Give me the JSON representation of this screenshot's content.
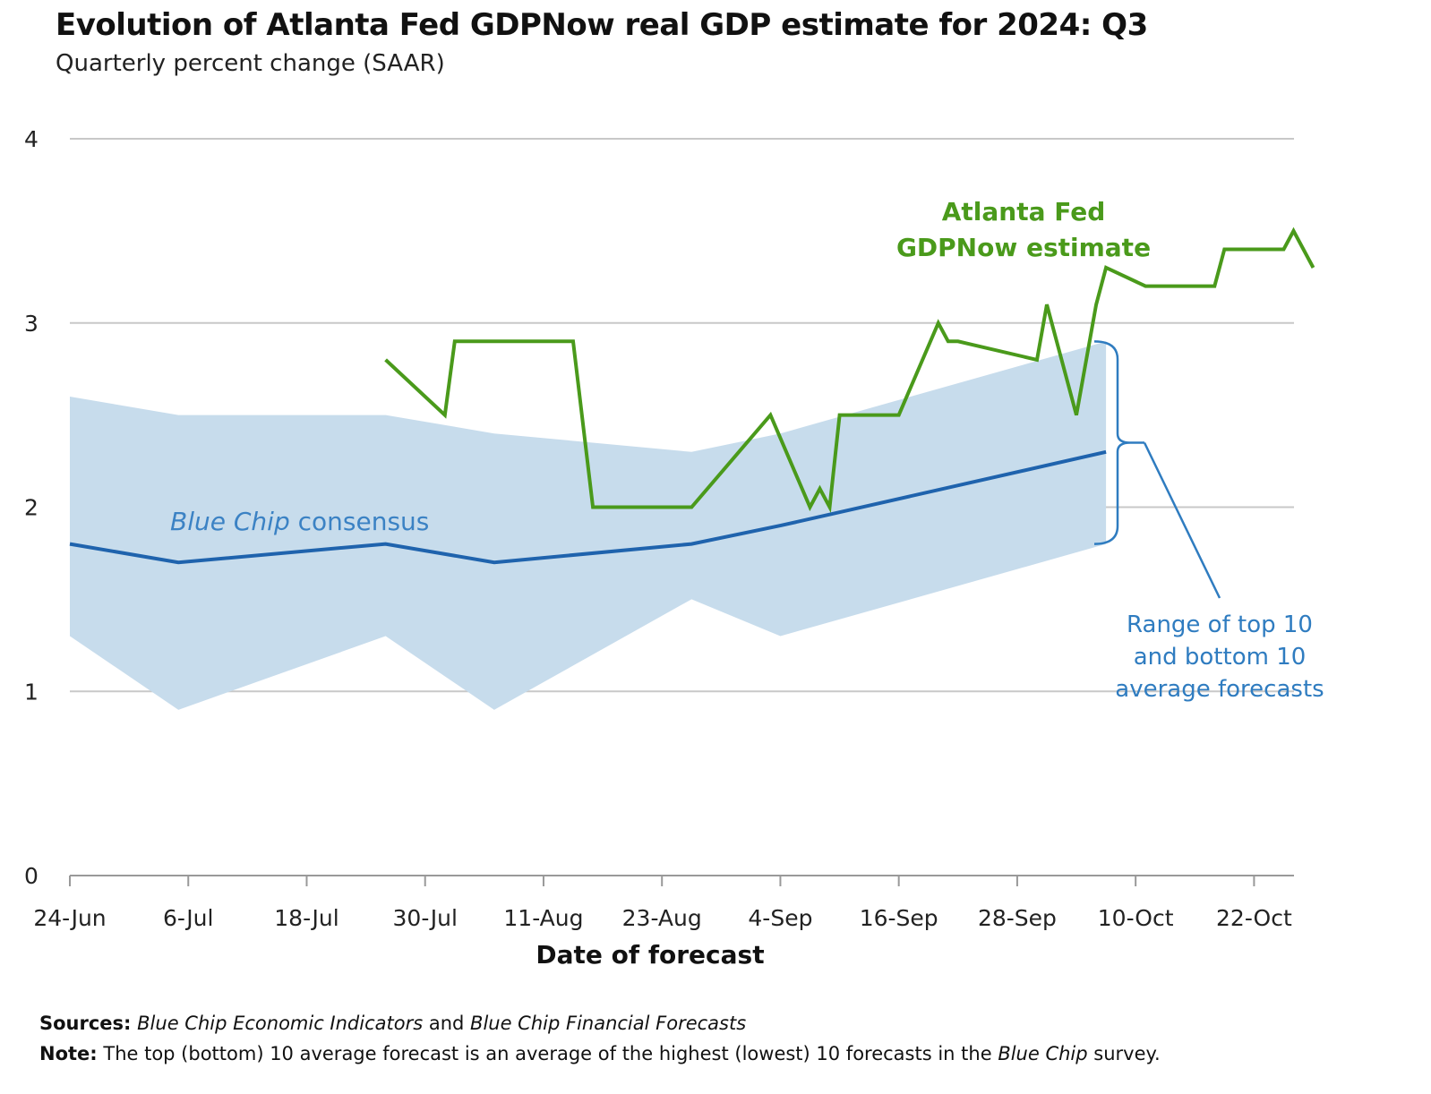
{
  "chart_data": {
    "type": "line",
    "title": "Evolution of Atlanta Fed GDPNow real GDP estimate for 2024: Q3",
    "subtitle": "Quarterly percent change (SAAR)",
    "xlabel": "Date of forecast",
    "ylabel": "",
    "ylim": [
      0,
      4
    ],
    "xlim": [
      "2024-06-24",
      "2024-10-28"
    ],
    "yticks": [
      0,
      1,
      2,
      3,
      4
    ],
    "xticks": [
      {
        "date": "2024-06-24",
        "label": "24-Jun"
      },
      {
        "date": "2024-07-06",
        "label": "6-Jul"
      },
      {
        "date": "2024-07-18",
        "label": "18-Jul"
      },
      {
        "date": "2024-07-30",
        "label": "30-Jul"
      },
      {
        "date": "2024-08-11",
        "label": "11-Aug"
      },
      {
        "date": "2024-08-23",
        "label": "23-Aug"
      },
      {
        "date": "2024-09-04",
        "label": "4-Sep"
      },
      {
        "date": "2024-09-16",
        "label": "16-Sep"
      },
      {
        "date": "2024-09-28",
        "label": "28-Sep"
      },
      {
        "date": "2024-10-10",
        "label": "10-Oct"
      },
      {
        "date": "2024-10-22",
        "label": "22-Oct"
      }
    ],
    "grid": true,
    "series": [
      {
        "name": "Atlanta Fed GDPNow estimate",
        "label_lines": [
          "Atlanta Fed",
          "GDPNow estimate"
        ],
        "color": "#4a9a1b",
        "points": [
          [
            "2024-07-26",
            2.8
          ],
          [
            "2024-08-01",
            2.5
          ],
          [
            "2024-08-02",
            2.9
          ],
          [
            "2024-08-14",
            2.9
          ],
          [
            "2024-08-16",
            2.0
          ],
          [
            "2024-08-26",
            2.0
          ],
          [
            "2024-09-03",
            2.5
          ],
          [
            "2024-09-07",
            2.0
          ],
          [
            "2024-09-08",
            2.1
          ],
          [
            "2024-09-09",
            2.0
          ],
          [
            "2024-09-10",
            2.5
          ],
          [
            "2024-09-16",
            2.5
          ],
          [
            "2024-09-20",
            3.0
          ],
          [
            "2024-09-21",
            2.9
          ],
          [
            "2024-09-22",
            2.9
          ],
          [
            "2024-09-30",
            2.8
          ],
          [
            "2024-10-01",
            3.1
          ],
          [
            "2024-10-04",
            2.5
          ],
          [
            "2024-10-06",
            3.1
          ],
          [
            "2024-10-07",
            3.3
          ],
          [
            "2024-10-11",
            3.2
          ],
          [
            "2024-10-18",
            3.2
          ],
          [
            "2024-10-19",
            3.4
          ],
          [
            "2024-10-25",
            3.4
          ],
          [
            "2024-10-26",
            3.5
          ],
          [
            "2024-10-28",
            3.3
          ]
        ]
      },
      {
        "name": "Blue Chip consensus",
        "label_italic": "Blue Chip",
        "label_rest": " consensus",
        "color": "#1f63ad",
        "points": [
          [
            "2024-06-24",
            1.8
          ],
          [
            "2024-07-05",
            1.7
          ],
          [
            "2024-07-26",
            1.8
          ],
          [
            "2024-08-06",
            1.7
          ],
          [
            "2024-08-26",
            1.8
          ],
          [
            "2024-09-04",
            1.9
          ],
          [
            "2024-10-07",
            2.3
          ]
        ]
      }
    ],
    "band": {
      "name": "Range of top 10 and bottom 10 average forecasts",
      "label_lines": [
        "Range of top 10",
        "and bottom 10",
        "average forecasts"
      ],
      "color": "#c7dcec",
      "upper": [
        [
          "2024-06-24",
          2.6
        ],
        [
          "2024-07-05",
          2.5
        ],
        [
          "2024-07-26",
          2.5
        ],
        [
          "2024-08-06",
          2.4
        ],
        [
          "2024-08-26",
          2.3
        ],
        [
          "2024-09-04",
          2.4
        ],
        [
          "2024-10-07",
          2.9
        ]
      ],
      "lower": [
        [
          "2024-06-24",
          1.3
        ],
        [
          "2024-07-05",
          0.9
        ],
        [
          "2024-07-26",
          1.3
        ],
        [
          "2024-08-06",
          0.9
        ],
        [
          "2024-08-26",
          1.5
        ],
        [
          "2024-09-04",
          1.3
        ],
        [
          "2024-10-07",
          1.8
        ]
      ]
    }
  },
  "footer": {
    "sources_label": "Sources:",
    "sources_italic_1": "Blue Chip Economic Indicators",
    "sources_and": " and ",
    "sources_italic_2": "Blue Chip Financial Forecasts",
    "note_label": "Note:",
    "note_text": " The top (bottom) 10 average forecast is an average of the highest (lowest) 10 forecasts in the ",
    "note_italic": "Blue Chip",
    "note_end": " survey."
  }
}
